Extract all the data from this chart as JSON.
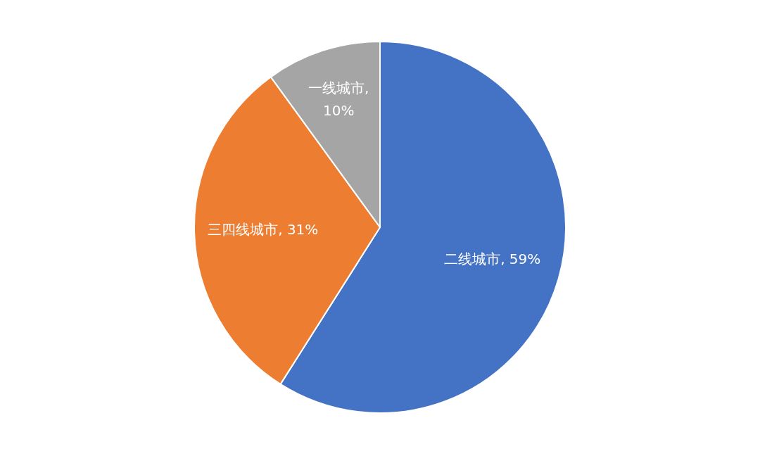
{
  "chart_data": {
    "type": "pie",
    "categories": [
      "二线城市",
      "三四线城市",
      "一线城市"
    ],
    "values": [
      59,
      31,
      10
    ],
    "colors": [
      "#4472c4",
      "#ed7d31",
      "#a5a5a5"
    ],
    "value_labels": [
      ", 59%",
      ", 31%",
      ", 10%"
    ],
    "legend": false
  }
}
